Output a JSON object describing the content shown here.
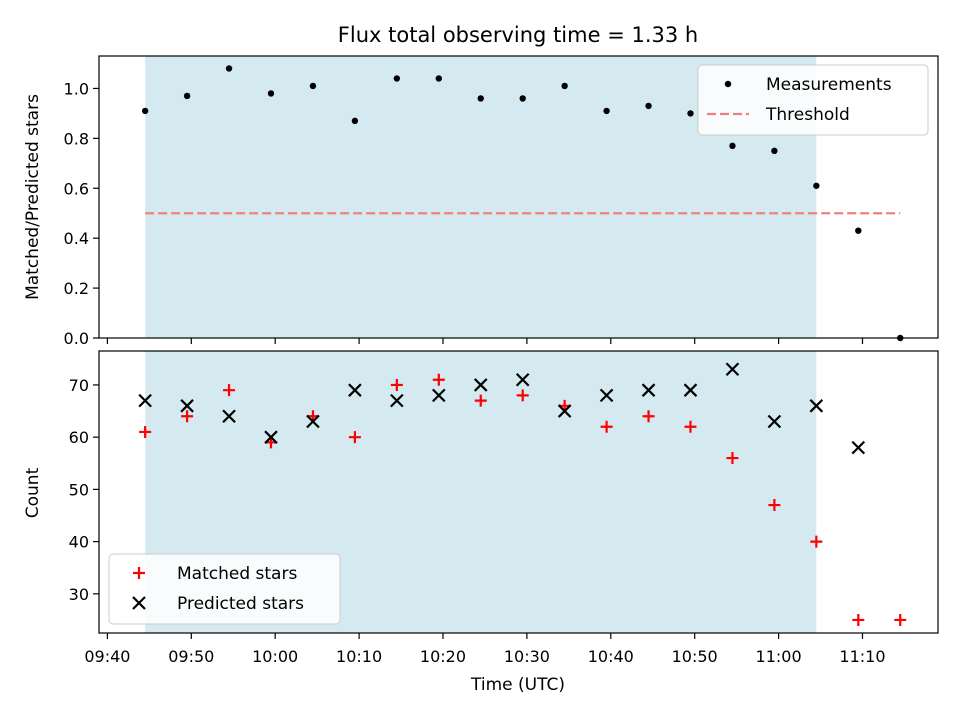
{
  "chart_data": [
    {
      "type": "scatter",
      "title": "Flux total observing time = 1.33 h",
      "xlabel": "",
      "ylabel": "Matched/Predicted stars",
      "xlim": [
        "09:39",
        "11:19"
      ],
      "ylim": [
        0,
        1.13
      ],
      "xticks": [
        "09:40",
        "09:50",
        "10:00",
        "10:10",
        "10:20",
        "10:30",
        "10:40",
        "10:50",
        "11:00",
        "11:10"
      ],
      "yticks": [
        "0.0",
        "0.2",
        "0.4",
        "0.6",
        "0.8",
        "1.0"
      ],
      "shaded_span": [
        "09:44.5",
        "11:04.5"
      ],
      "shade_color": "#d4eaf0",
      "series": [
        {
          "name": "Measurements",
          "marker": "dot",
          "color": "#000000",
          "x": [
            "09:44.5",
            "09:49.5",
            "09:54.5",
            "09:59.5",
            "10:04.5",
            "10:09.5",
            "10:14.5",
            "10:19.5",
            "10:24.5",
            "10:29.5",
            "10:34.5",
            "10:39.5",
            "10:44.5",
            "10:49.5",
            "10:54.5",
            "10:59.5",
            "11:04.5",
            "11:09.5",
            "11:14.5"
          ],
          "y": [
            0.91,
            0.97,
            1.08,
            0.98,
            1.01,
            0.87,
            1.04,
            1.04,
            0.96,
            0.96,
            1.01,
            0.91,
            0.93,
            0.9,
            0.77,
            0.75,
            0.61,
            0.43,
            0.0
          ]
        },
        {
          "name": "Threshold",
          "marker": "dashed-line",
          "color": "#f08080",
          "x": [
            "09:44.5",
            "11:14.5"
          ],
          "y": [
            0.5,
            0.5
          ]
        }
      ],
      "legend_position": "top-right"
    },
    {
      "type": "scatter",
      "title": "",
      "xlabel": "Time (UTC)",
      "ylabel": "Count",
      "xlim": [
        "09:39",
        "11:19"
      ],
      "ylim": [
        22.5,
        76.5
      ],
      "xticks": [
        "09:40",
        "09:50",
        "10:00",
        "10:10",
        "10:20",
        "10:30",
        "10:40",
        "10:50",
        "11:00",
        "11:10"
      ],
      "yticks": [
        "30",
        "40",
        "50",
        "60",
        "70"
      ],
      "shaded_span": [
        "09:44.5",
        "11:04.5"
      ],
      "shade_color": "#d4eaf0",
      "series": [
        {
          "name": "Matched stars",
          "marker": "plus",
          "color": "#ff0000",
          "x": [
            "09:44.5",
            "09:49.5",
            "09:54.5",
            "09:59.5",
            "10:04.5",
            "10:09.5",
            "10:14.5",
            "10:19.5",
            "10:24.5",
            "10:29.5",
            "10:34.5",
            "10:39.5",
            "10:44.5",
            "10:49.5",
            "10:54.5",
            "10:59.5",
            "11:04.5",
            "11:09.5",
            "11:14.5"
          ],
          "y": [
            61,
            64,
            69,
            59,
            64,
            60,
            70,
            71,
            67,
            68,
            66,
            62,
            64,
            62,
            56,
            47,
            40,
            25,
            25
          ]
        },
        {
          "name": "Predicted stars",
          "marker": "x",
          "color": "#000000",
          "x": [
            "09:44.5",
            "09:49.5",
            "09:54.5",
            "09:59.5",
            "10:04.5",
            "10:09.5",
            "10:14.5",
            "10:19.5",
            "10:24.5",
            "10:29.5",
            "10:34.5",
            "10:39.5",
            "10:44.5",
            "10:49.5",
            "10:54.5",
            "10:59.5",
            "11:04.5",
            "11:09.5"
          ],
          "y": [
            67,
            66,
            64,
            60,
            63,
            69,
            67,
            68,
            70,
            71,
            65,
            68,
            69,
            69,
            73,
            63,
            66,
            58
          ]
        }
      ],
      "legend_position": "bottom-left"
    }
  ]
}
